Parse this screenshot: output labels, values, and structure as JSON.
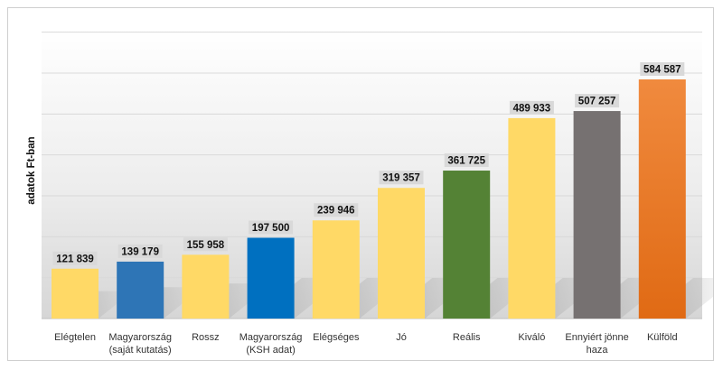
{
  "chart_data": {
    "type": "bar",
    "title": "",
    "ylabel": "adatok Ft-ban",
    "xlabel": "",
    "ylim": [
      0,
      700000
    ],
    "grid": true,
    "legend": "none",
    "categories": [
      [
        "Elégtelen"
      ],
      [
        "Magyarország",
        "(saját kutatás)"
      ],
      [
        "Rossz"
      ],
      [
        "Magyarország",
        "(KSH adat)"
      ],
      [
        "Elégséges"
      ],
      [
        "Jó"
      ],
      [
        "Reális"
      ],
      [
        "Kiváló"
      ],
      [
        "Ennyiért jönne",
        "haza"
      ],
      [
        "Külföld"
      ]
    ],
    "values": [
      121839,
      139179,
      155958,
      197500,
      239946,
      319357,
      361725,
      489933,
      507257,
      584587
    ],
    "value_labels": [
      "121 839",
      "139 179",
      "155 958",
      "197 500",
      "239 946",
      "319 357",
      "361 725",
      "489 933",
      "507 257",
      "584 587"
    ],
    "colors": [
      "#ffd966",
      "#2e75b6",
      "#ffd966",
      "#0070c0",
      "#ffd966",
      "#ffd966",
      "#548235",
      "#ffd966",
      "#767171",
      "#ed7d31"
    ]
  }
}
